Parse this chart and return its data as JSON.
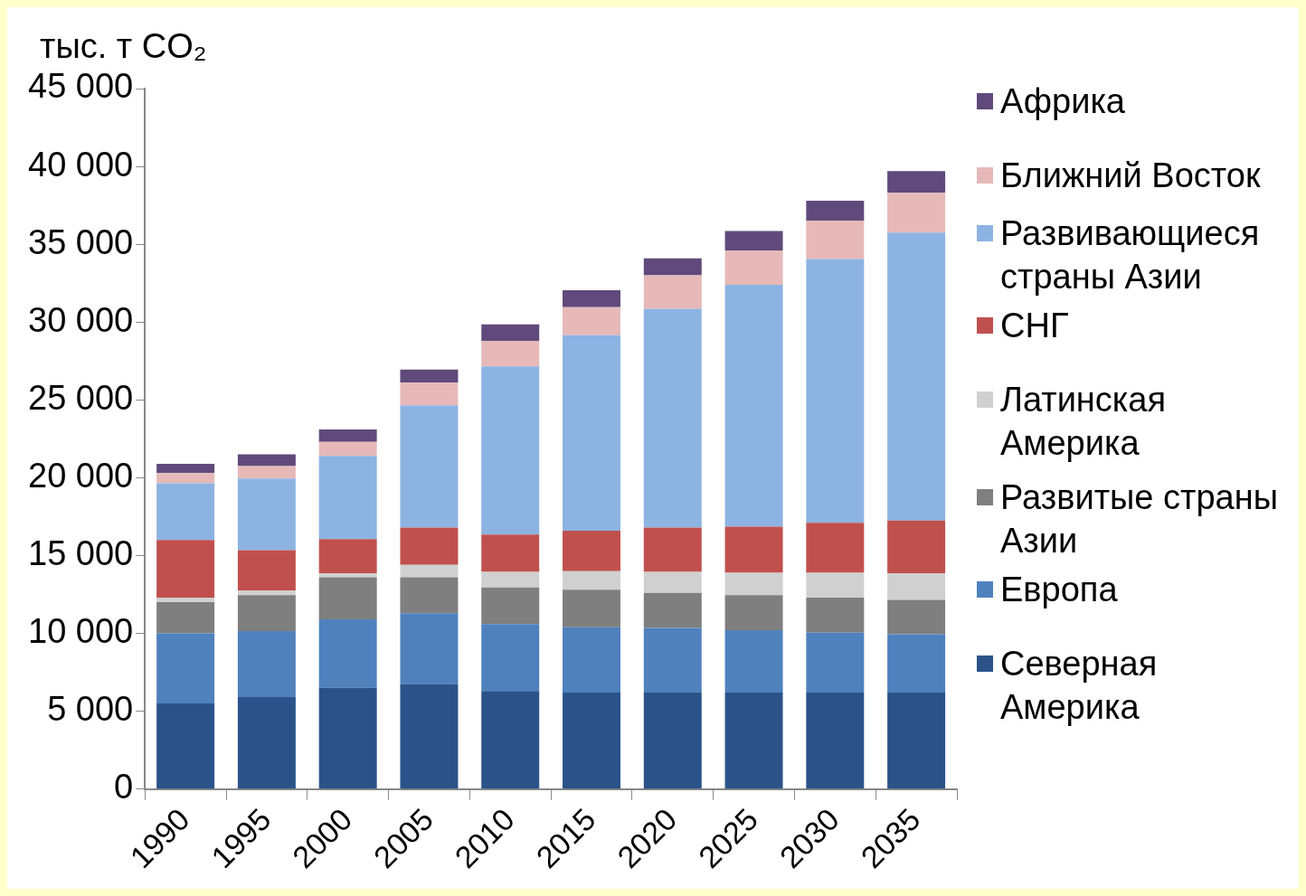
{
  "chart_data": {
    "type": "bar",
    "stacked": true,
    "ylabel": "тыс. т CO₂",
    "categories": [
      "1990",
      "1995",
      "2000",
      "2005",
      "2010",
      "2015",
      "2020",
      "2025",
      "2030",
      "2035"
    ],
    "ylim": [
      0,
      45000
    ],
    "yticks": [
      {
        "value": 0,
        "label": "0"
      },
      {
        "value": 5000,
        "label": "5 000"
      },
      {
        "value": 10000,
        "label": "10 000"
      },
      {
        "value": 15000,
        "label": "15 000"
      },
      {
        "value": 20000,
        "label": "20 000"
      },
      {
        "value": 25000,
        "label": "25 000"
      },
      {
        "value": 30000,
        "label": "30 000"
      },
      {
        "value": 35000,
        "label": "35 000"
      },
      {
        "value": 40000,
        "label": "40 000"
      },
      {
        "value": 45000,
        "label": "45 000"
      }
    ],
    "grid": false,
    "legend": "right",
    "series": [
      {
        "name": "Северная Америка",
        "color": "#2b5389",
        "values": [
          5500,
          5900,
          6500,
          6750,
          6300,
          6200,
          6200,
          6200,
          6200,
          6200
        ]
      },
      {
        "name": "Европа",
        "color": "#4f81bd",
        "values": [
          4500,
          4250,
          4400,
          4550,
          4300,
          4200,
          4150,
          4000,
          3850,
          3750
        ]
      },
      {
        "name": "Развитые страны Азии",
        "color": "#7f7f7f",
        "values": [
          2000,
          2300,
          2700,
          2300,
          2350,
          2400,
          2250,
          2250,
          2250,
          2200
        ]
      },
      {
        "name": "Латинская Америка",
        "color": "#d0d0d0",
        "values": [
          300,
          300,
          250,
          800,
          1000,
          1200,
          1350,
          1450,
          1600,
          1700
        ]
      },
      {
        "name": "СНГ",
        "color": "#c0504d",
        "values": [
          3700,
          2600,
          2200,
          2400,
          2400,
          2600,
          2850,
          2950,
          3200,
          3400
        ]
      },
      {
        "name": "Развивающиеся страны Азии",
        "color": "#8db3e2",
        "values": [
          3650,
          4600,
          5350,
          7850,
          10800,
          12550,
          14050,
          15550,
          16950,
          18500
        ]
      },
      {
        "name": "Ближний Восток",
        "color": "#e6b9b8",
        "values": [
          650,
          800,
          900,
          1450,
          1650,
          1800,
          2150,
          2200,
          2450,
          2550
        ]
      },
      {
        "name": "Африка",
        "color": "#604a7b",
        "values": [
          600,
          750,
          800,
          850,
          1050,
          1100,
          1100,
          1250,
          1300,
          1400
        ]
      }
    ]
  }
}
